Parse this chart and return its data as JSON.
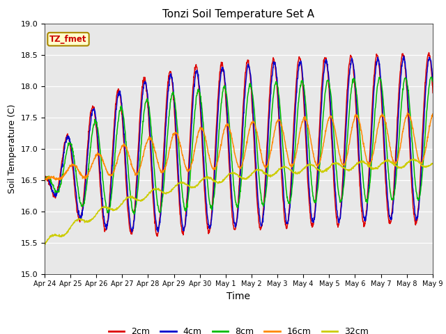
{
  "title": "Tonzi Soil Temperature Set A",
  "xlabel": "Time",
  "ylabel": "Soil Temperature (C)",
  "ylim": [
    15.0,
    19.0
  ],
  "yticks": [
    15.0,
    15.5,
    16.0,
    16.5,
    17.0,
    17.5,
    18.0,
    18.5,
    19.0
  ],
  "colors": {
    "2cm": "#dd0000",
    "4cm": "#0000cc",
    "8cm": "#00bb00",
    "16cm": "#ff8800",
    "32cm": "#cccc00"
  },
  "legend_label": "TZ_fmet",
  "legend_box_facecolor": "#ffffcc",
  "legend_box_edgecolor": "#aa8800",
  "background_color": "#e8e8e8",
  "tick_labels": [
    "Apr 24",
    "Apr 25",
    "Apr 26",
    "Apr 27",
    "Apr 28",
    "Apr 29",
    "Apr 30",
    "May 1",
    "May 2",
    "May 3",
    "May 4",
    "May 5",
    "May 6",
    "May 7",
    "May 8",
    "May 9"
  ]
}
